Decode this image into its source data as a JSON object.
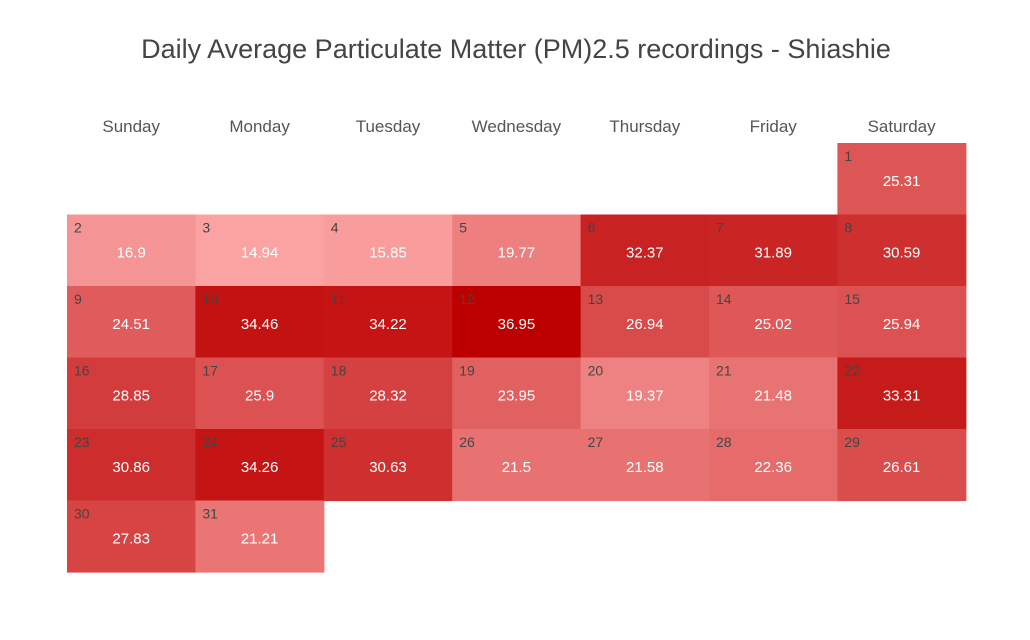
{
  "chart_data": {
    "type": "heatmap",
    "title": "Daily Average Particulate Matter (PM)2.5 recordings - Shiashie",
    "weekdays": [
      "Sunday",
      "Monday",
      "Tuesday",
      "Wednesday",
      "Thursday",
      "Friday",
      "Saturday"
    ],
    "first_weekday_index": 6,
    "days": [
      1,
      2,
      3,
      4,
      5,
      6,
      7,
      8,
      9,
      10,
      11,
      12,
      13,
      14,
      15,
      16,
      17,
      18,
      19,
      20,
      21,
      22,
      23,
      24,
      25,
      26,
      27,
      28,
      29,
      30,
      31
    ],
    "values": [
      25.31,
      16.9,
      14.94,
      15.85,
      19.77,
      32.37,
      31.89,
      30.59,
      24.51,
      34.46,
      34.22,
      36.95,
      26.94,
      25.02,
      25.94,
      28.85,
      25.9,
      28.32,
      23.95,
      19.37,
      21.48,
      33.31,
      30.86,
      34.26,
      30.63,
      21.5,
      21.58,
      22.36,
      26.61,
      27.83,
      21.21
    ],
    "value_labels": [
      "25.31",
      "16.9",
      "14.94",
      "15.85",
      "19.77",
      "32.37",
      "31.89",
      "30.59",
      "24.51",
      "34.46",
      "34.22",
      "36.95",
      "26.94",
      "25.02",
      "25.94",
      "28.85",
      "25.9",
      "28.32",
      "23.95",
      "19.37",
      "21.48",
      "33.31",
      "30.86",
      "34.26",
      "30.63",
      "21.5",
      "21.58",
      "22.36",
      "26.61",
      "27.83",
      "21.21"
    ],
    "color_low": "#fba3a3",
    "color_high": "#bc0000",
    "value_range": [
      14.94,
      36.95
    ]
  }
}
